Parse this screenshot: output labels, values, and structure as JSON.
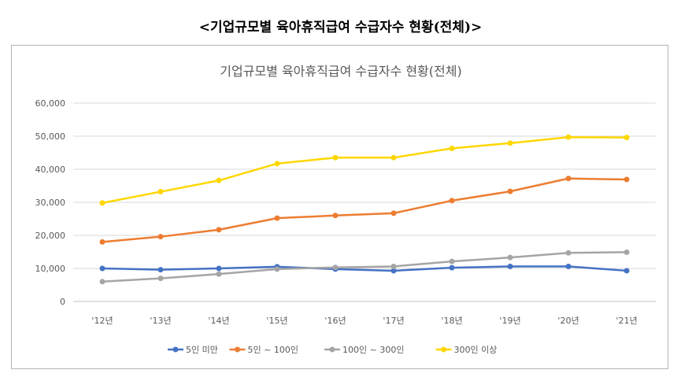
{
  "page": {
    "outer_title": "<기업규모별 육아휴직급여 수급자수 현황(전체)>"
  },
  "chart_data": {
    "type": "line",
    "title": "기업규모별 육아휴직급여 수급자수 현황(전체)",
    "xlabel": "",
    "ylabel": "",
    "categories": [
      "'12년",
      "'13년",
      "'14년",
      "'15년",
      "'16년",
      "'17년",
      "'18년",
      "'19년",
      "'20년",
      "'21년"
    ],
    "ylim": [
      0,
      60000
    ],
    "yticks": [
      0,
      10000,
      20000,
      30000,
      40000,
      50000,
      60000
    ],
    "ytick_labels": [
      "0",
      "10,000",
      "20,000",
      "30,000",
      "40,000",
      "50,000",
      "60,000"
    ],
    "grid": true,
    "legend_position": "bottom",
    "series": [
      {
        "name": "5인 미만",
        "color": "#4472C4",
        "values": [
          10000,
          9600,
          10000,
          10500,
          9800,
          9300,
          10200,
          10600,
          10600,
          9300
        ]
      },
      {
        "name": "5인 ~ 100인",
        "color": "#ED7D31",
        "values": [
          18000,
          19600,
          21700,
          25200,
          26000,
          26700,
          30500,
          33300,
          37200,
          36900
        ]
      },
      {
        "name": "100인 ~ 300인",
        "color": "#A5A5A5",
        "values": [
          6000,
          7000,
          8300,
          9800,
          10300,
          10600,
          12100,
          13300,
          14700,
          14900
        ]
      },
      {
        "name": "300인 이상",
        "color": "#FFD700",
        "values": [
          29800,
          33200,
          36600,
          41700,
          43500,
          43500,
          46300,
          47900,
          49700,
          49600
        ]
      }
    ]
  }
}
